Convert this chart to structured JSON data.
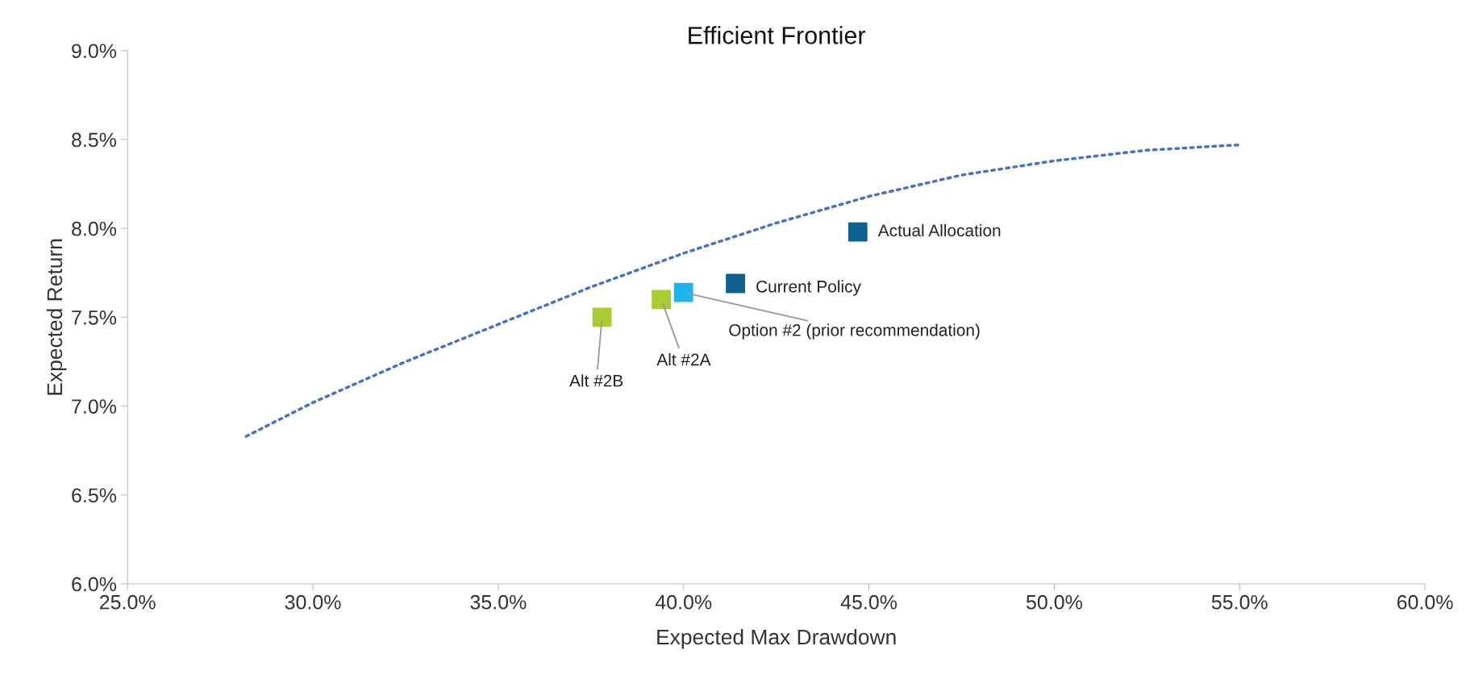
{
  "chart_data": {
    "type": "scatter",
    "title": "Efficient Frontier",
    "xlabel": "Expected Max Drawdown",
    "ylabel": "Expected Return",
    "series": [
      {
        "type": "line",
        "color": "#4472c4",
        "line_style": "dotted",
        "marker": "none",
        "x": [
          28.2,
          30.0,
          32.5,
          35.0,
          37.5,
          40.0,
          42.5,
          45.0,
          47.5,
          50.0,
          52.5,
          55.0
        ],
        "values": [
          6.83,
          7.02,
          7.25,
          7.46,
          7.67,
          7.86,
          8.03,
          8.18,
          8.3,
          8.38,
          8.44,
          8.47
        ]
      },
      {
        "marker": "square",
        "x": [
          44.7,
          41.4,
          40.0,
          39.4,
          37.8
        ],
        "values": [
          7.98,
          7.69,
          7.64,
          7.6,
          7.5
        ],
        "colors": [
          "#0f5f8f",
          "#0f5f8f",
          "#1fb4ec",
          "#a9cc32",
          "#a9cc32"
        ]
      }
    ],
    "annotations": [
      {
        "text": "Actual Allocation",
        "x": 44.7,
        "y": 7.98
      },
      {
        "text": "Current Policy",
        "x": 41.4,
        "y": 7.69
      },
      {
        "text": "Option #2 (prior recommendation)",
        "x": 40.0,
        "y": 7.64
      },
      {
        "text": "Alt #2A",
        "x": 39.4,
        "y": 7.6
      },
      {
        "text": "Alt #2B",
        "x": 37.8,
        "y": 7.5
      }
    ],
    "xlim": [
      25,
      60
    ],
    "xticks": [
      {
        "value": 25,
        "label": "25.0%"
      },
      {
        "value": 30,
        "label": "30.0%"
      },
      {
        "value": 35,
        "label": "35.0%"
      },
      {
        "value": 40,
        "label": "40.0%"
      },
      {
        "value": 45,
        "label": "45.0%"
      },
      {
        "value": 50,
        "label": "50.0%"
      },
      {
        "value": 55,
        "label": "55.0%"
      },
      {
        "value": 60,
        "label": "60.0%"
      }
    ],
    "ylim": [
      6,
      9
    ],
    "yticks": [
      {
        "value": 6,
        "label": "6.0%"
      },
      {
        "value": 6.5,
        "label": "6.5%"
      },
      {
        "value": 7,
        "label": "7.0%"
      },
      {
        "value": 7.5,
        "label": "7.5%"
      },
      {
        "value": 8,
        "label": "8.0%"
      },
      {
        "value": 8.5,
        "label": "8.5%"
      },
      {
        "value": 9,
        "label": "9.0%"
      }
    ],
    "grid": false,
    "legend": false
  }
}
